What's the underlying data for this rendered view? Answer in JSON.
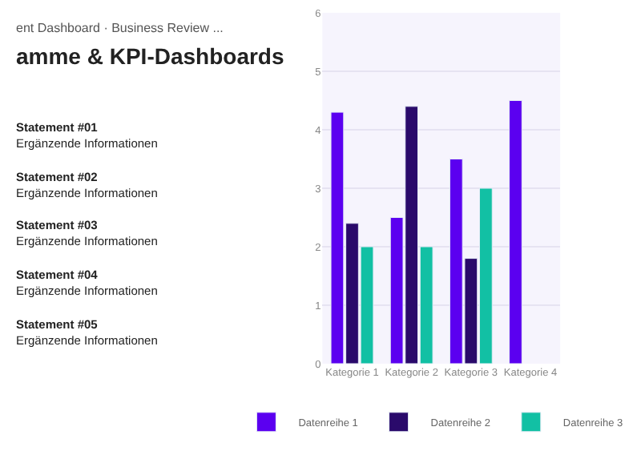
{
  "chart_data": {
    "type": "bar",
    "title": "amme & KPI-Dashboards",
    "subtitle": "ent Dashboard · Business Review ...",
    "categories": [
      "Kategorie 1",
      "Kategorie 2",
      "Kategorie 3",
      "Kategorie 4"
    ],
    "series": [
      {
        "name": "Datenreihe 1",
        "color": "#5b00f0",
        "values": [
          4.3,
          2.5,
          3.5,
          4.5
        ]
      },
      {
        "name": "Datenreihe 2",
        "color": "#2a0a6b",
        "values": [
          2.4,
          4.4,
          1.8,
          null
        ]
      },
      {
        "name": "Datenreihe 3",
        "color": "#12c0a4",
        "values": [
          2.0,
          2.0,
          3.0,
          null
        ]
      }
    ],
    "ylim": [
      0,
      6
    ],
    "yticks": [
      0,
      1,
      2,
      3,
      4,
      5,
      6
    ],
    "grid": "y",
    "legend": "bottom",
    "annotations": [
      "Statement #01\nErgänzende Informationen",
      "Statement #02\nErgänzende Informationen",
      "Statement #03\nErgänzende Informationen",
      "Statement #04\nErgänzende Informationen",
      "Statement #05\nErgänzende Informationen"
    ]
  }
}
